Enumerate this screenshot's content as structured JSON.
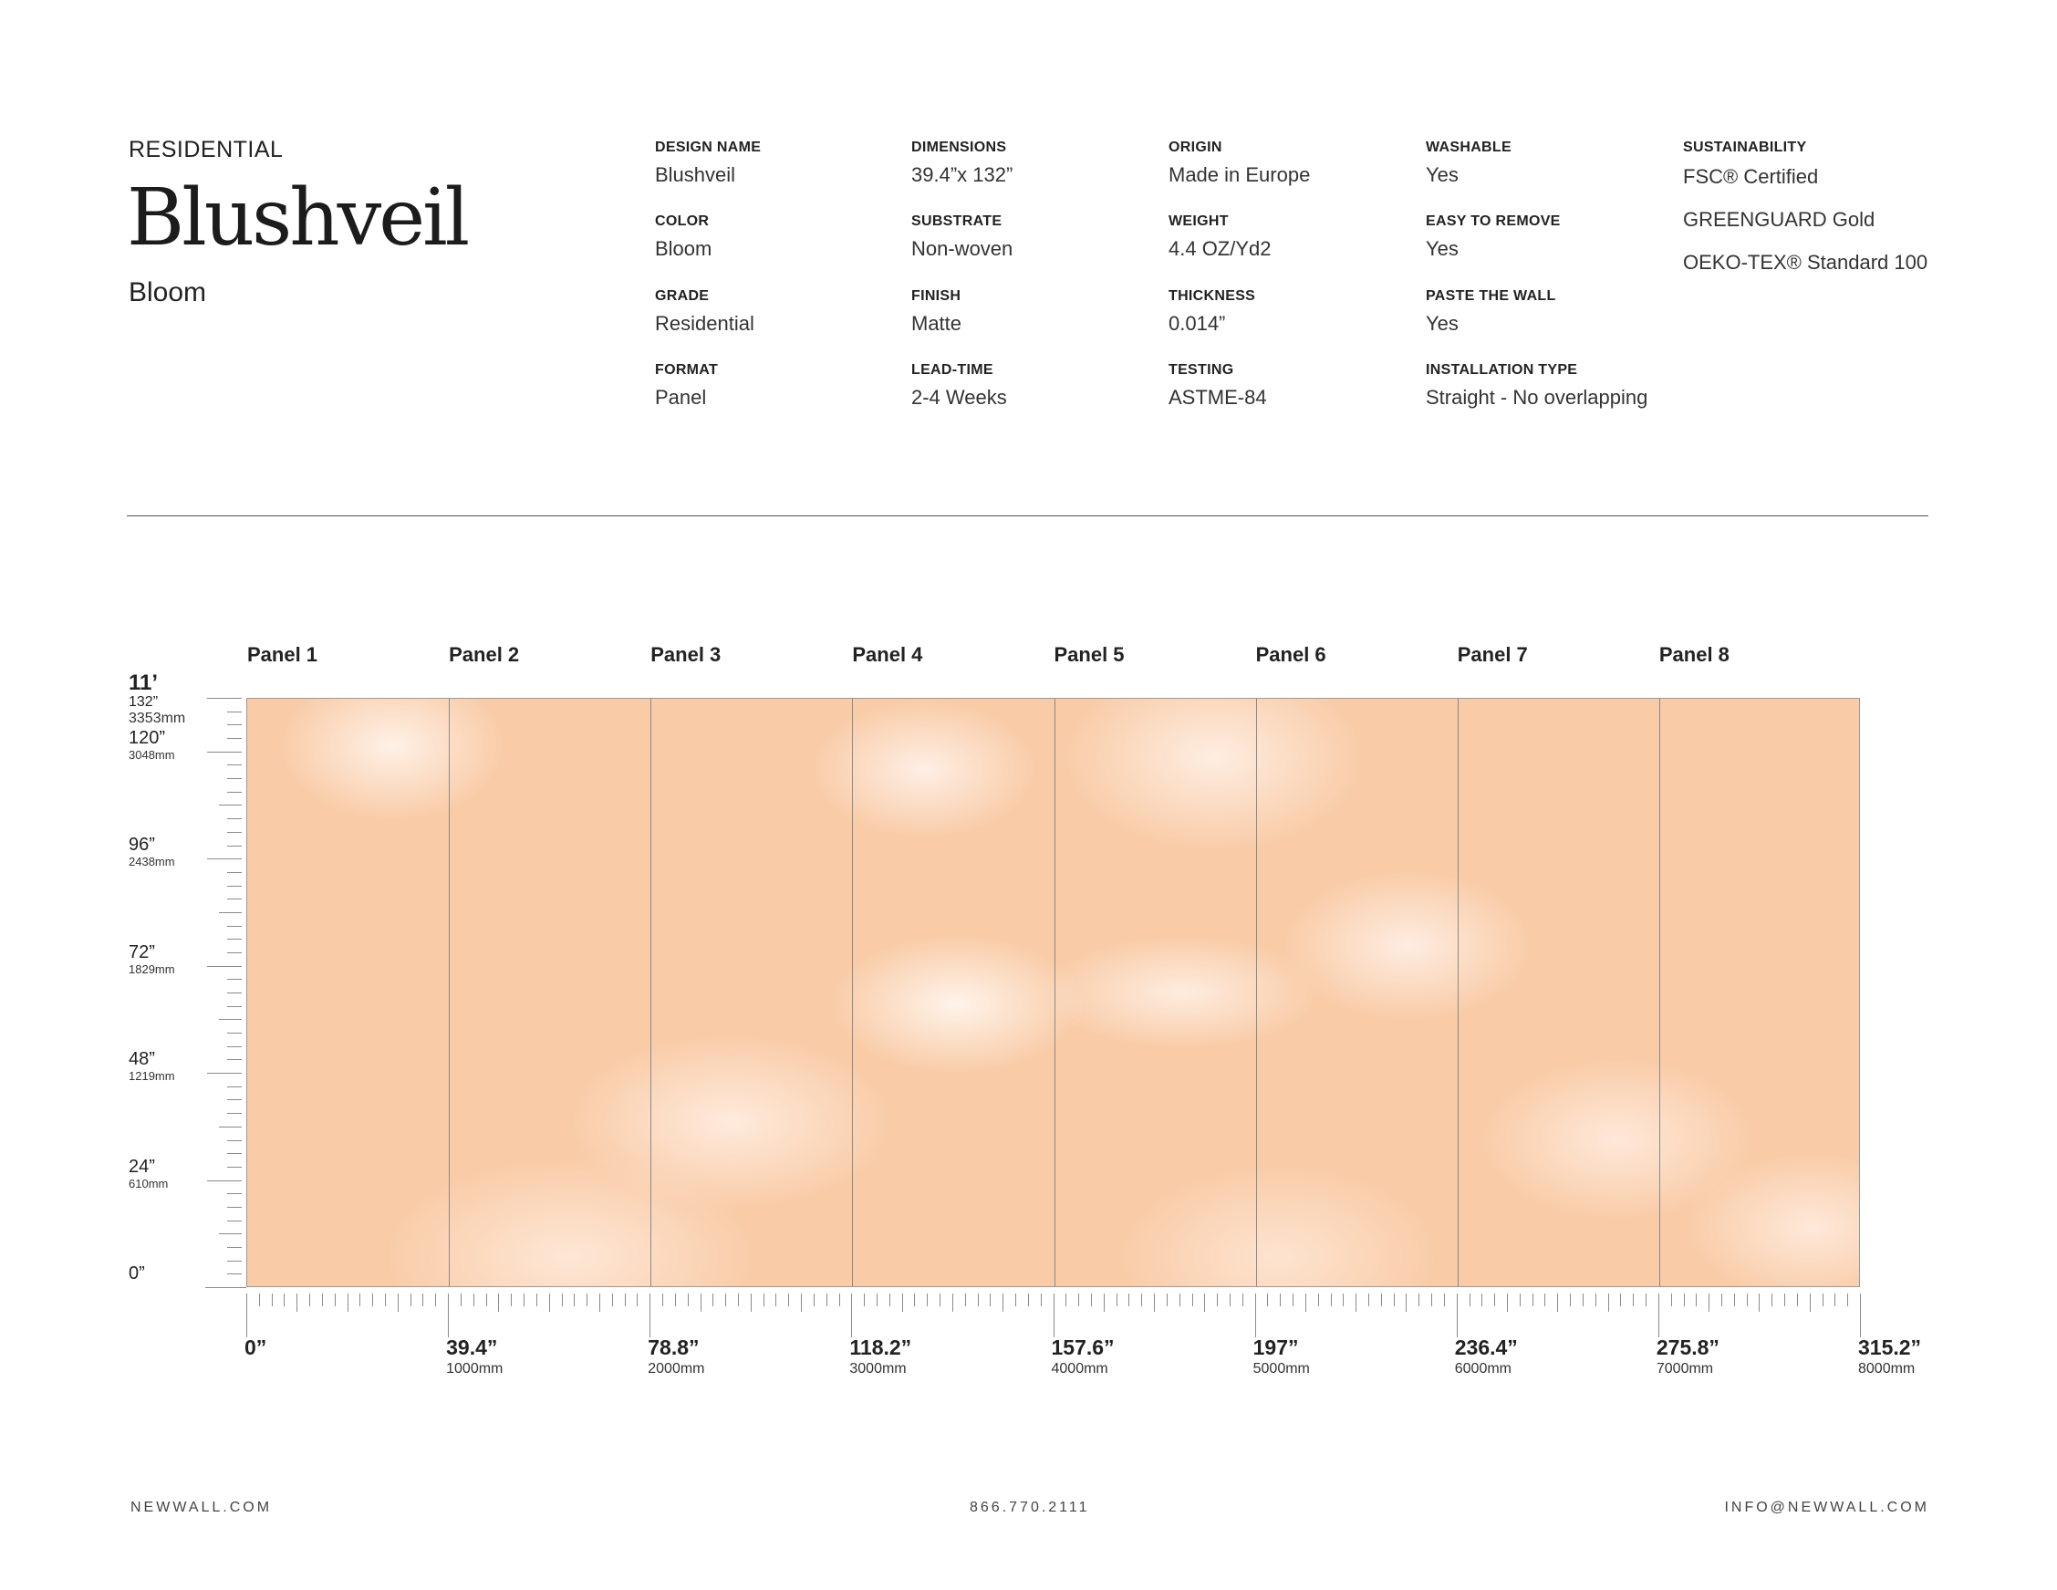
{
  "header": {
    "category": "RESIDENTIAL",
    "design_title": "Blushveil",
    "colorway": "Bloom"
  },
  "specs": [
    [
      {
        "label": "DESIGN NAME",
        "value": "Blushveil"
      },
      {
        "label": "COLOR",
        "value": "Bloom"
      },
      {
        "label": "GRADE",
        "value": "Residential"
      },
      {
        "label": "FORMAT",
        "value": "Panel"
      }
    ],
    [
      {
        "label": "DIMENSIONS",
        "value": "39.4”x 132”"
      },
      {
        "label": "SUBSTRATE",
        "value": "Non-woven"
      },
      {
        "label": "FINISH",
        "value": "Matte"
      },
      {
        "label": "LEAD-TIME",
        "value": "2-4 Weeks"
      }
    ],
    [
      {
        "label": "ORIGIN",
        "value": "Made in Europe"
      },
      {
        "label": "WEIGHT",
        "value": "4.4 OZ/Yd2"
      },
      {
        "label": "THICKNESS",
        "value": "0.014”"
      },
      {
        "label": "TESTING",
        "value": "ASTME-84"
      }
    ],
    [
      {
        "label": "WASHABLE",
        "value": "Yes"
      },
      {
        "label": "EASY TO REMOVE",
        "value": "Yes"
      },
      {
        "label": "PASTE THE WALL",
        "value": "Yes"
      },
      {
        "label": "INSTALLATION TYPE",
        "value": "Straight - No overlapping"
      }
    ]
  ],
  "sustainability": {
    "label": "SUSTAINABILITY",
    "items": [
      "FSC® Certified",
      "GREENGUARD Gold",
      "OEKO-TEX® Standard 100"
    ]
  },
  "panels": [
    "Panel 1",
    "Panel 2",
    "Panel 3",
    "Panel 4",
    "Panel 5",
    "Panel 6",
    "Panel 7",
    "Panel 8"
  ],
  "wall_colors": {
    "peach": "#f9cba6",
    "highlight": "#fff4ec"
  },
  "y_ruler": {
    "top_label": "11’",
    "marks": [
      {
        "in": 132,
        "label": "132”",
        "mm": "3353mm"
      },
      {
        "in": 120,
        "label": "120”",
        "mm": "3048mm"
      },
      {
        "in": 96,
        "label": "96”",
        "mm": "2438mm"
      },
      {
        "in": 72,
        "label": "72”",
        "mm": "1829mm"
      },
      {
        "in": 48,
        "label": "48”",
        "mm": "1219mm"
      },
      {
        "in": 24,
        "label": "24”",
        "mm": "610mm"
      },
      {
        "in": 0,
        "label": "0”",
        "mm": ""
      }
    ]
  },
  "x_ruler": {
    "marks": [
      {
        "in": 0,
        "label": "0”",
        "mm": ""
      },
      {
        "in": 39.4,
        "label": "39.4”",
        "mm": "1000mm"
      },
      {
        "in": 78.8,
        "label": "78.8”",
        "mm": "2000mm"
      },
      {
        "in": 118.2,
        "label": "118.2”",
        "mm": "3000mm"
      },
      {
        "in": 157.6,
        "label": "157.6”",
        "mm": "4000mm"
      },
      {
        "in": 197,
        "label": "197”",
        "mm": "5000mm"
      },
      {
        "in": 236.4,
        "label": "236.4”",
        "mm": "6000mm"
      },
      {
        "in": 275.8,
        "label": "275.8”",
        "mm": "7000mm"
      },
      {
        "in": 315.2,
        "label": "315.2”",
        "mm": "8000mm"
      }
    ]
  },
  "footer": {
    "website": "NEWWALL.COM",
    "phone": "866.770.2111",
    "email": "INFO@NEWWALL.COM"
  }
}
